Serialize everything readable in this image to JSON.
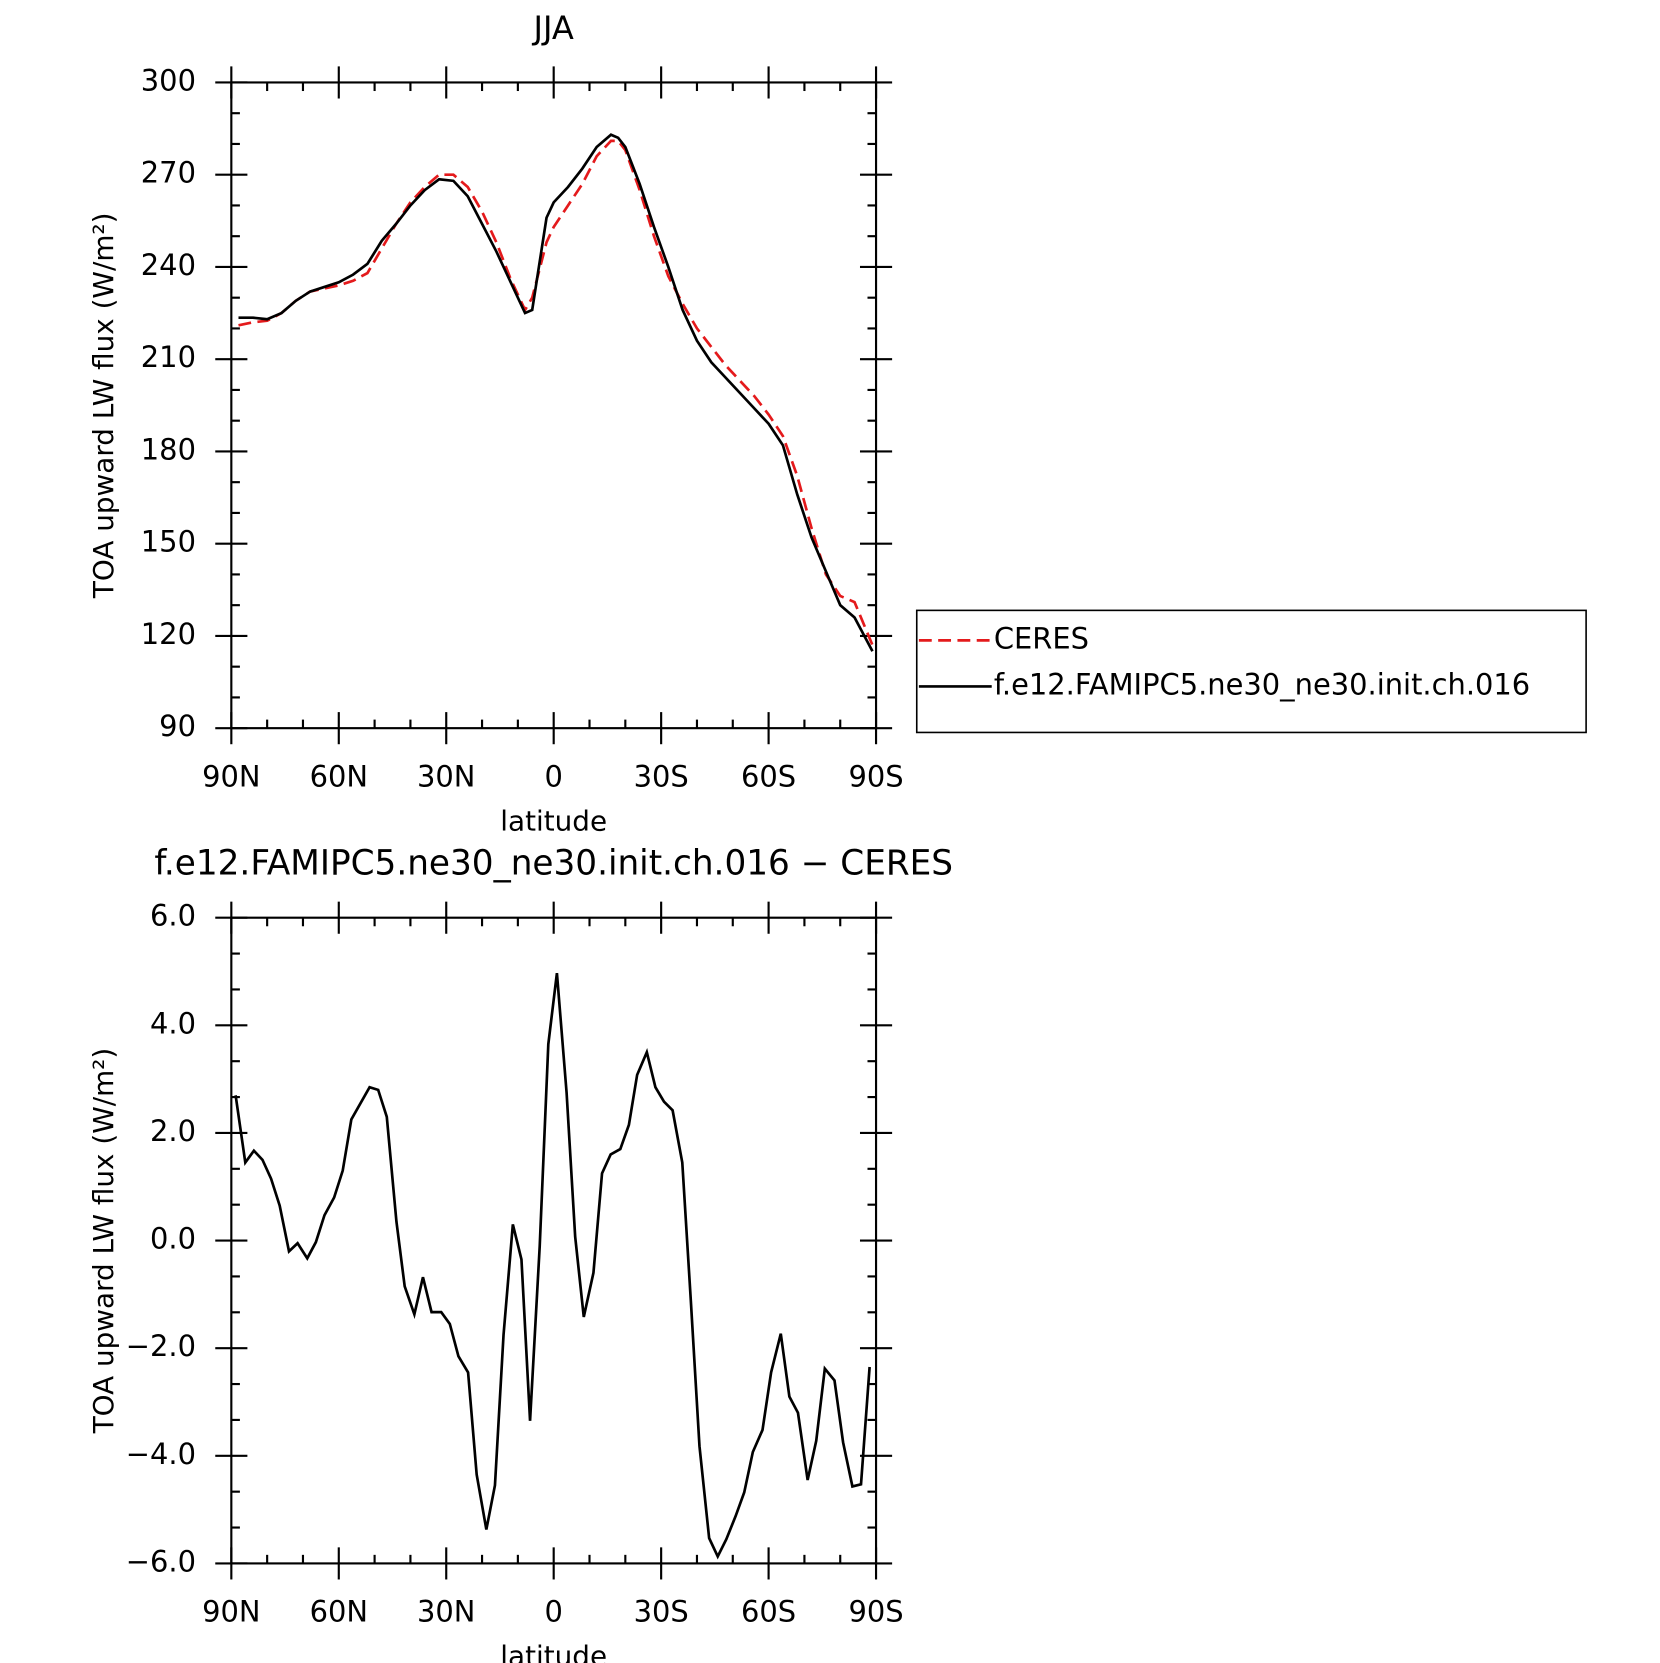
{
  "chart_data": [
    {
      "type": "line",
      "title": "JJA",
      "xlabel": "latitude",
      "ylabel": "TOA upward LW flux (W/m²)",
      "xlim": [
        90,
        -90
      ],
      "xticks": [
        {
          "value": 90,
          "label": "90N"
        },
        {
          "value": 60,
          "label": "60N"
        },
        {
          "value": 30,
          "label": "30N"
        },
        0,
        {
          "value": -30,
          "label": "30S"
        },
        {
          "value": -60,
          "label": "60S"
        },
        {
          "value": -90,
          "label": "90S"
        }
      ],
      "ylim": [
        90,
        300
      ],
      "yticks": [
        90,
        120,
        150,
        180,
        210,
        240,
        270,
        300
      ],
      "legend": "right",
      "x": [
        88,
        84,
        80,
        76,
        72,
        68,
        64,
        60,
        56,
        52,
        48,
        44,
        40,
        36,
        32,
        28,
        24,
        20,
        16,
        12,
        8,
        6,
        2,
        0,
        -4,
        -8,
        -12,
        -16,
        -18,
        -20,
        -24,
        -28,
        -32,
        -36,
        -40,
        -44,
        -48,
        -52,
        -56,
        -60,
        -64,
        -68,
        -72,
        -76,
        -80,
        -84,
        -89
      ],
      "series": [
        {
          "name": "CERES",
          "color": "#e41a1c",
          "linestyle": "dashed",
          "values": [
            221,
            222,
            222.5,
            225,
            229,
            232,
            233,
            234,
            235.5,
            238,
            246,
            254,
            261,
            266,
            270,
            270,
            266,
            258,
            248,
            236,
            226,
            230,
            248,
            253,
            260,
            267,
            276,
            281,
            281,
            278,
            265,
            250,
            237,
            228,
            220,
            214,
            208,
            203,
            198,
            192,
            185,
            172,
            155,
            140,
            133,
            131,
            117
          ]
        },
        {
          "name": "f.e12.FAMIPC5.ne30_ne30.init.ch.016",
          "color": "#000000",
          "linestyle": "solid",
          "values": [
            223.5,
            223.5,
            223,
            225,
            229,
            232,
            233.5,
            235,
            237.5,
            241,
            248.5,
            254,
            260,
            265,
            268.5,
            268,
            263,
            254,
            245,
            235,
            225,
            226,
            256,
            261,
            266,
            272,
            279,
            283,
            282,
            279,
            267,
            253,
            240,
            226,
            216,
            209,
            204,
            199,
            194,
            189,
            182,
            166,
            152,
            141,
            130,
            126,
            115
          ]
        }
      ]
    },
    {
      "type": "line",
      "title": "f.e12.FAMIPC5.ne30_ne30.init.ch.016 − CERES",
      "xlabel": "latitude",
      "ylabel": "TOA upward LW flux (W/m²)",
      "xlim": [
        90,
        -90
      ],
      "xticks": [
        {
          "value": 90,
          "label": "90N"
        },
        {
          "value": 60,
          "label": "60N"
        },
        {
          "value": 30,
          "label": "30N"
        },
        0,
        {
          "value": -30,
          "label": "30S"
        },
        {
          "value": -60,
          "label": "60S"
        },
        {
          "value": -90,
          "label": "90S"
        }
      ],
      "ylim": [
        -6,
        6
      ],
      "yticks": [
        {
          "value": -6,
          "label": "−6.0"
        },
        {
          "value": -4,
          "label": "−4.0"
        },
        {
          "value": -2,
          "label": "−2.0"
        },
        {
          "value": 0,
          "label": "0.0"
        },
        {
          "value": 2,
          "label": "2.0"
        },
        {
          "value": 4,
          "label": "4.0"
        },
        {
          "value": 6,
          "label": "6.0"
        }
      ],
      "x": [
        88.8,
        86.1,
        83.7,
        81.3,
        78.9,
        76.5,
        73.9,
        71.5,
        68.8,
        66.4,
        64.0,
        61.3,
        58.9,
        56.5,
        51.4,
        49.0,
        46.6,
        43.9,
        41.6,
        38.9,
        36.5,
        34.1,
        31.4,
        29.0,
        26.6,
        23.9,
        21.5,
        18.8,
        16.4,
        14.0,
        11.4,
        9.0,
        6.6,
        3.9,
        1.5,
        -0.9,
        -3.6,
        -6.0,
        -8.4,
        -11.1,
        -13.5,
        -15.9,
        -18.6,
        -21.0,
        -23.3,
        -26.0,
        -28.4,
        -30.8,
        -33.2,
        -35.9,
        -38.3,
        -40.7,
        -43.4,
        -45.8,
        -48.2,
        -50.8,
        -53.2,
        -55.6,
        -58.3,
        -60.7,
        -63.4,
        -65.8,
        -68.2,
        -70.9,
        -73.3,
        -75.7,
        -78.4,
        -80.8,
        -83.4,
        -85.8,
        -88.2
      ],
      "series": [
        {
          "color": "#000000",
          "linestyle": "solid",
          "values": [
            2.7,
            1.45,
            1.67,
            1.5,
            1.15,
            0.65,
            -0.2,
            -0.05,
            -0.33,
            -0.03,
            0.47,
            0.8,
            1.3,
            2.25,
            2.85,
            2.8,
            2.3,
            0.35,
            -0.85,
            -1.37,
            -0.68,
            -1.33,
            -1.33,
            -1.55,
            -2.15,
            -2.45,
            -4.35,
            -5.37,
            -4.55,
            -1.75,
            0.3,
            -0.35,
            -3.35,
            -0.1,
            3.65,
            4.97,
            2.75,
            0.07,
            -1.42,
            -0.6,
            1.25,
            1.6,
            1.7,
            2.15,
            3.08,
            3.5,
            2.85,
            2.58,
            2.42,
            1.45,
            -1.13,
            -3.82,
            -5.53,
            -5.87,
            -5.55,
            -5.12,
            -4.68,
            -3.93,
            -3.52,
            -2.45,
            -1.73,
            -2.9,
            -3.2,
            -4.45,
            -3.72,
            -2.38,
            -2.6,
            -3.75,
            -4.57,
            -4.53,
            -2.35
          ]
        }
      ]
    }
  ]
}
